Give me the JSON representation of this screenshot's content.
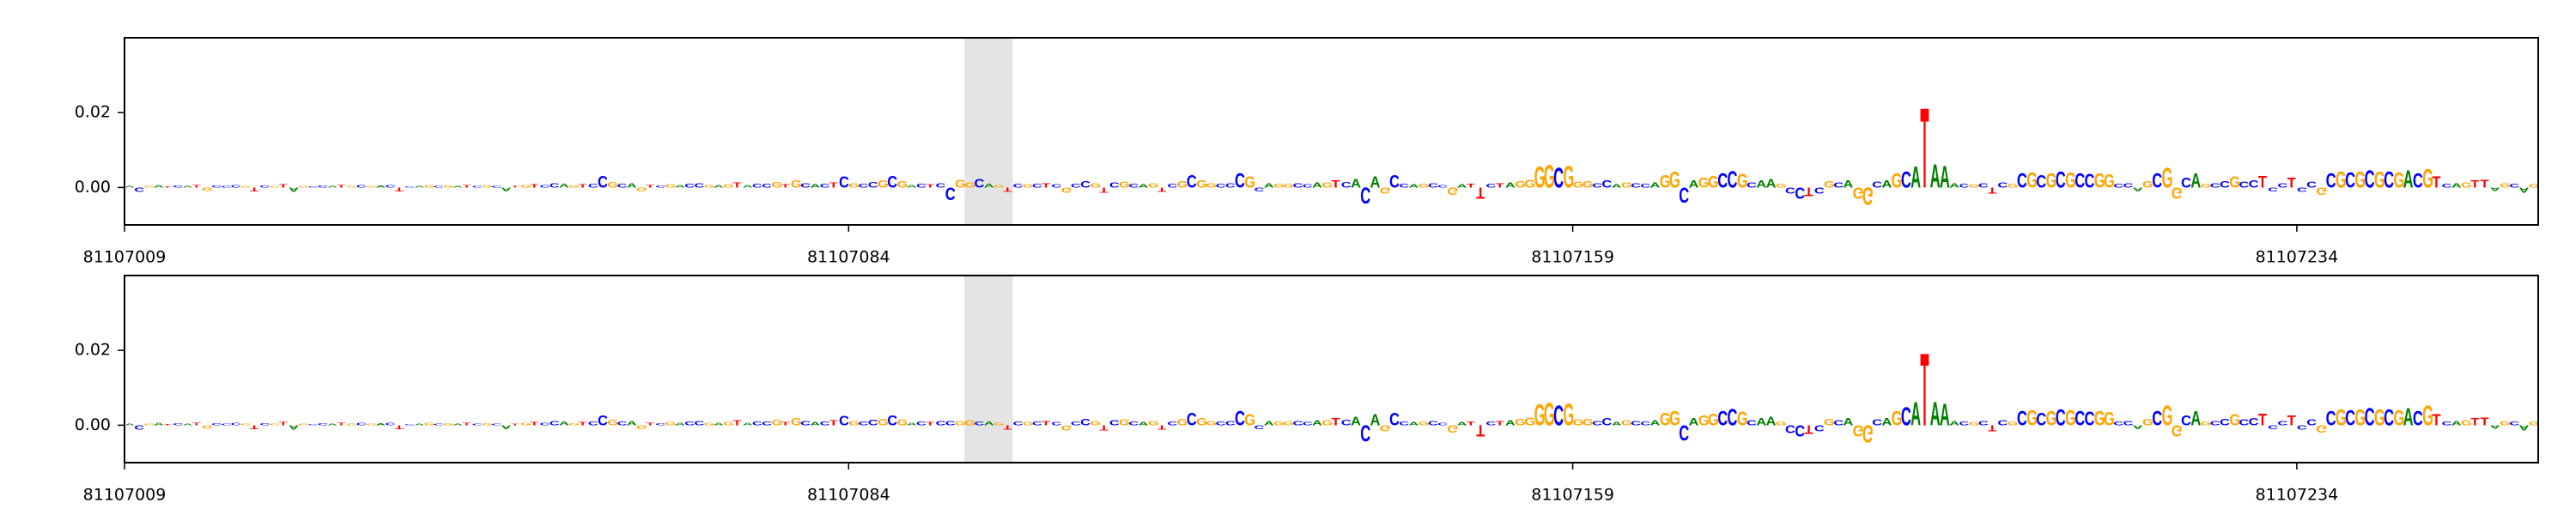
{
  "chart_data": [
    {
      "type": "logo",
      "letters": [
        "A",
        "C",
        "G",
        "A",
        "T",
        "C",
        "A",
        "T",
        "G",
        "C",
        "C",
        "C",
        "G",
        "T",
        "C",
        "G",
        "T",
        "A",
        "G",
        "C",
        "C",
        "A",
        "T",
        "G",
        "C",
        "G",
        "A",
        "C",
        "T",
        "C",
        "A",
        "G",
        "C",
        "G",
        "A",
        "T",
        "C",
        "G",
        "C",
        "A",
        "T",
        "G",
        "T",
        "C",
        "C",
        "A",
        "G",
        "T",
        "C",
        "C",
        "G",
        "C",
        "A",
        "G",
        "T",
        "C",
        "G",
        "A",
        "C",
        "C",
        "G",
        "A",
        "G",
        "T",
        "A",
        "C",
        "C",
        "G",
        "T",
        "G",
        "C",
        "A",
        "C",
        "T",
        "C",
        "G",
        "C",
        "C",
        "G",
        "C",
        "G",
        "A",
        "C",
        "T",
        "C",
        "C",
        "G",
        "G",
        "C",
        "A",
        "G",
        "T",
        "C",
        "G",
        "C",
        "T",
        "C",
        "G",
        "C",
        "C",
        "G",
        "T",
        "C",
        "G",
        "C",
        "A",
        "G",
        "T",
        "C",
        "G",
        "C",
        "G",
        "G",
        "C",
        "C",
        "C",
        "G",
        "C",
        "A",
        "G",
        "G",
        "C",
        "C",
        "A",
        "G",
        "T",
        "C",
        "A",
        "C",
        "A",
        "G",
        "C",
        "C",
        "A",
        "G",
        "C",
        "C",
        "G",
        "A",
        "T",
        "T",
        "C",
        "T",
        "A",
        "G",
        "G",
        "G",
        "G",
        "C",
        "G",
        "G",
        "G",
        "C",
        "C",
        "A",
        "G",
        "C",
        "C",
        "A",
        "G",
        "G",
        "C",
        "A",
        "G",
        "G",
        "C",
        "C",
        "G",
        "C",
        "A",
        "A",
        "G",
        "C",
        "C",
        "T",
        "C",
        "G",
        "C",
        "A",
        "G",
        "G",
        "C",
        "A",
        "G",
        "C",
        "A",
        "T",
        "A",
        "A",
        "A",
        "C",
        "G",
        "C",
        "T",
        "C",
        "G",
        "C",
        "G",
        "C",
        "G",
        "C",
        "G",
        "C",
        "C",
        "G",
        "G",
        "C",
        "C",
        "A",
        "G",
        "C",
        "G",
        "G",
        "C",
        "A",
        "G",
        "C",
        "C",
        "G",
        "C",
        "C",
        "T",
        "C",
        "C",
        "T",
        "C",
        "C",
        "G",
        "C",
        "G",
        "C",
        "G",
        "C",
        "G",
        "C",
        "G",
        "A",
        "C",
        "G",
        "T",
        "C",
        "A",
        "G",
        "T",
        "T",
        "A",
        "G",
        "C",
        "A",
        "G"
      ],
      "values": [
        0.0005,
        -0.0012,
        0.0004,
        0.0008,
        0.0003,
        0.0006,
        0.0004,
        0.0007,
        -0.0009,
        0.0006,
        0.0005,
        0.0008,
        0.0004,
        -0.0011,
        0.0006,
        0.0005,
        0.0009,
        -0.0012,
        0.0004,
        0.0003,
        0.0006,
        0.0004,
        0.0007,
        0.0005,
        0.0008,
        0.0004,
        0.0006,
        0.0008,
        -0.001,
        0.0003,
        0.0005,
        0.0007,
        0.0004,
        0.0006,
        0.0005,
        0.0008,
        0.0004,
        0.0006,
        0.0005,
        -0.0011,
        0.0004,
        0.0007,
        0.0009,
        0.0008,
        0.0012,
        0.001,
        0.0006,
        0.0009,
        0.0011,
        0.0032,
        0.0015,
        0.001,
        0.0012,
        -0.001,
        0.0008,
        0.0006,
        0.0009,
        0.0007,
        0.001,
        0.0012,
        0.0008,
        0.0007,
        0.0009,
        0.0013,
        0.0008,
        0.001,
        0.0011,
        0.0015,
        0.0009,
        0.002,
        0.0012,
        0.0009,
        0.0011,
        0.0014,
        0.003,
        0.0012,
        0.001,
        0.0015,
        0.002,
        0.0032,
        0.0018,
        0.0008,
        0.001,
        0.0009,
        0.0012,
        -0.0035,
        0.0022,
        0.0014,
        0.0024,
        0.001,
        0.0008,
        -0.0012,
        0.001,
        0.0009,
        0.0011,
        0.0012,
        0.0009,
        -0.0013,
        0.001,
        0.0018,
        0.0012,
        -0.0014,
        0.0014,
        0.0016,
        0.001,
        0.0009,
        0.0012,
        -0.0012,
        0.0011,
        0.0018,
        0.0035,
        0.002,
        0.0012,
        0.001,
        0.0012,
        0.004,
        0.003,
        -0.001,
        0.0012,
        0.0011,
        0.001,
        0.0012,
        0.0009,
        0.0013,
        0.0014,
        0.002,
        0.0015,
        0.0025,
        -0.0045,
        0.003,
        -0.0016,
        0.0035,
        0.001,
        0.0009,
        0.001,
        0.0012,
        0.0008,
        -0.002,
        0.0009,
        0.0011,
        -0.003,
        0.001,
        0.0012,
        0.0014,
        0.0018,
        0.0022,
        0.0058,
        0.0062,
        0.0055,
        0.006,
        0.0016,
        0.0018,
        0.0012,
        0.002,
        0.0009,
        0.0014,
        0.0012,
        0.001,
        0.0013,
        0.0035,
        0.0045,
        -0.0042,
        0.002,
        0.0028,
        0.0032,
        0.004,
        0.0046,
        0.0038,
        0.0014,
        0.002,
        0.0024,
        0.001,
        -0.0016,
        -0.003,
        -0.0025,
        -0.0016,
        0.0018,
        0.0014,
        0.002,
        -0.003,
        -0.0048,
        0.0016,
        0.002,
        0.004,
        0.0045,
        0.0058,
        0.022,
        0.0065,
        0.006,
        0.0012,
        0.001,
        0.0009,
        0.0012,
        -0.0016,
        0.0014,
        0.001,
        0.004,
        0.0042,
        0.0035,
        0.004,
        0.0045,
        0.0042,
        0.004,
        0.0038,
        0.004,
        0.0036,
        0.001,
        0.0012,
        -0.001,
        0.0018,
        0.004,
        0.0055,
        -0.003,
        0.0028,
        0.004,
        0.001,
        0.0012,
        0.0018,
        0.003,
        0.0016,
        0.002,
        0.0032,
        -0.001,
        0.0012,
        0.0028,
        -0.0012,
        0.0016,
        -0.002,
        0.004,
        0.0045,
        0.0042,
        0.0045,
        0.0048,
        0.0044,
        0.0045,
        0.0042,
        0.0048,
        0.004,
        0.0052,
        0.003,
        0.001,
        0.0012,
        0.0014,
        0.002,
        0.0022,
        -0.0009,
        0.0012,
        0.001,
        -0.0014,
        0.001
      ],
      "colors": {
        "A": "#008000",
        "C": "#0000ff",
        "G": "#ffa500",
        "T": "#ff0000"
      },
      "xlim": [
        81107009,
        81107259
      ],
      "xticks": [
        81107009,
        81107084,
        81107159,
        81107234
      ],
      "ylim": [
        -0.01,
        0.04
      ],
      "yticks": [
        {
          "value": 0,
          "label": "0.00"
        },
        {
          "value": 0.02,
          "label": "0.02"
        }
      ],
      "highlight": [
        81107096,
        81107101
      ],
      "highlight_color": "#e4e4e4"
    },
    {
      "type": "logo",
      "letters": [
        "A",
        "C",
        "G",
        "A",
        "T",
        "C",
        "A",
        "T",
        "G",
        "C",
        "C",
        "C",
        "G",
        "T",
        "C",
        "G",
        "T",
        "A",
        "G",
        "C",
        "C",
        "A",
        "T",
        "G",
        "C",
        "G",
        "A",
        "C",
        "T",
        "C",
        "A",
        "G",
        "C",
        "G",
        "A",
        "T",
        "C",
        "G",
        "C",
        "A",
        "T",
        "G",
        "T",
        "C",
        "C",
        "A",
        "G",
        "T",
        "C",
        "C",
        "G",
        "C",
        "A",
        "G",
        "T",
        "C",
        "G",
        "A",
        "C",
        "C",
        "G",
        "A",
        "G",
        "T",
        "A",
        "C",
        "C",
        "G",
        "T",
        "G",
        "C",
        "A",
        "C",
        "T",
        "C",
        "G",
        "C",
        "C",
        "G",
        "C",
        "G",
        "A",
        "C",
        "T",
        "C",
        "C",
        "G",
        "G",
        "C",
        "A",
        "G",
        "T",
        "C",
        "G",
        "C",
        "T",
        "C",
        "G",
        "C",
        "C",
        "G",
        "T",
        "C",
        "G",
        "C",
        "A",
        "G",
        "T",
        "C",
        "G",
        "C",
        "G",
        "G",
        "C",
        "C",
        "C",
        "G",
        "C",
        "A",
        "G",
        "G",
        "C",
        "C",
        "A",
        "G",
        "T",
        "C",
        "A",
        "C",
        "A",
        "G",
        "C",
        "C",
        "A",
        "G",
        "C",
        "C",
        "G",
        "A",
        "T",
        "T",
        "C",
        "T",
        "A",
        "G",
        "G",
        "G",
        "G",
        "C",
        "G",
        "G",
        "G",
        "C",
        "C",
        "A",
        "G",
        "C",
        "C",
        "A",
        "G",
        "G",
        "C",
        "A",
        "G",
        "G",
        "C",
        "C",
        "G",
        "C",
        "A",
        "A",
        "G",
        "C",
        "C",
        "T",
        "C",
        "G",
        "C",
        "A",
        "G",
        "G",
        "C",
        "A",
        "G",
        "C",
        "A",
        "T",
        "A",
        "A",
        "A",
        "C",
        "G",
        "C",
        "T",
        "C",
        "G",
        "C",
        "G",
        "C",
        "G",
        "C",
        "G",
        "C",
        "C",
        "G",
        "G",
        "C",
        "C",
        "A",
        "G",
        "C",
        "G",
        "G",
        "C",
        "A",
        "G",
        "C",
        "C",
        "G",
        "C",
        "C",
        "T",
        "C",
        "C",
        "T",
        "C",
        "C",
        "G",
        "C",
        "G",
        "C",
        "G",
        "C",
        "G",
        "C",
        "G",
        "A",
        "C",
        "G",
        "T",
        "C",
        "A",
        "G",
        "T",
        "T",
        "A",
        "G",
        "C",
        "A",
        "G"
      ],
      "values": [
        0.0005,
        -0.0012,
        0.0004,
        0.0008,
        0.0003,
        0.0006,
        0.0004,
        0.0007,
        -0.0009,
        0.0006,
        0.0005,
        0.0008,
        0.0004,
        -0.0011,
        0.0006,
        0.0005,
        0.0009,
        -0.0012,
        0.0004,
        0.0003,
        0.0006,
        0.0004,
        0.0007,
        0.0005,
        0.0008,
        0.0004,
        0.0006,
        0.0008,
        -0.001,
        0.0003,
        0.0005,
        0.0007,
        0.0004,
        0.0006,
        0.0005,
        0.0008,
        0.0004,
        0.0006,
        0.0005,
        -0.0011,
        0.0004,
        0.0007,
        0.0009,
        0.0008,
        0.0012,
        0.001,
        0.0006,
        0.0009,
        0.0011,
        0.0028,
        0.0015,
        0.001,
        0.0012,
        -0.001,
        0.0008,
        0.0006,
        0.0009,
        0.0007,
        0.001,
        0.0012,
        0.0008,
        0.0007,
        0.0009,
        0.0013,
        0.0008,
        0.001,
        0.0011,
        0.0015,
        0.0009,
        0.002,
        0.0012,
        0.0009,
        0.0011,
        0.0014,
        0.0026,
        0.0012,
        0.001,
        0.0015,
        0.0018,
        0.0028,
        0.0016,
        0.0008,
        0.001,
        0.0009,
        0.0012,
        0.0012,
        0.0012,
        0.0014,
        0.001,
        0.001,
        0.0008,
        -0.0012,
        0.001,
        0.0009,
        0.0011,
        0.0012,
        0.0009,
        -0.0013,
        0.001,
        0.0018,
        0.0012,
        -0.0014,
        0.0014,
        0.0016,
        0.001,
        0.0009,
        0.0012,
        -0.0012,
        0.0011,
        0.0018,
        0.0035,
        0.002,
        0.0012,
        0.001,
        0.0012,
        0.004,
        0.003,
        -0.001,
        0.0012,
        0.0011,
        0.001,
        0.0012,
        0.0009,
        0.0013,
        0.0014,
        0.002,
        0.0015,
        0.0025,
        -0.0045,
        0.003,
        -0.0016,
        0.0035,
        0.001,
        0.0009,
        0.001,
        0.0012,
        0.0008,
        -0.002,
        0.0009,
        0.0011,
        -0.003,
        0.001,
        0.0012,
        0.0014,
        0.0018,
        0.0022,
        0.0058,
        0.0062,
        0.0055,
        0.006,
        0.0016,
        0.0018,
        0.0012,
        0.002,
        0.0009,
        0.0014,
        0.0012,
        0.001,
        0.0013,
        0.0035,
        0.004,
        -0.0042,
        0.002,
        0.0028,
        0.0032,
        0.004,
        0.0046,
        0.0038,
        0.0014,
        0.002,
        0.0024,
        0.001,
        -0.0022,
        -0.003,
        -0.0025,
        -0.0016,
        0.0018,
        0.0014,
        0.002,
        -0.003,
        -0.0048,
        0.0016,
        0.002,
        0.004,
        0.005,
        0.0065,
        0.02,
        0.0065,
        0.006,
        0.0012,
        0.001,
        0.0009,
        0.0012,
        -0.0016,
        0.0014,
        0.001,
        0.004,
        0.0042,
        0.0035,
        0.004,
        0.0045,
        0.0042,
        0.004,
        0.0038,
        0.004,
        0.0036,
        0.001,
        0.0012,
        -0.001,
        0.0018,
        0.004,
        0.0055,
        -0.003,
        0.0028,
        0.004,
        0.001,
        0.0012,
        0.0018,
        0.003,
        0.0016,
        0.002,
        0.0032,
        -0.001,
        0.0012,
        0.0028,
        -0.0012,
        0.0016,
        -0.002,
        0.004,
        0.0045,
        0.0042,
        0.0045,
        0.0048,
        0.0044,
        0.0045,
        0.0042,
        0.0048,
        0.004,
        0.0055,
        0.003,
        0.001,
        0.0012,
        0.0014,
        0.002,
        0.0022,
        -0.0009,
        0.0012,
        0.001,
        -0.0014,
        0.001
      ],
      "colors": {
        "A": "#008000",
        "C": "#0000ff",
        "G": "#ffa500",
        "T": "#ff0000"
      },
      "xlim": [
        81107009,
        81107259
      ],
      "xticks": [
        81107009,
        81107084,
        81107159,
        81107234
      ],
      "ylim": [
        -0.01,
        0.04
      ],
      "yticks": [
        {
          "value": 0,
          "label": "0.00"
        },
        {
          "value": 0.02,
          "label": "0.02"
        }
      ],
      "highlight": [
        81107096,
        81107101
      ],
      "highlight_color": "#e4e4e4"
    }
  ]
}
